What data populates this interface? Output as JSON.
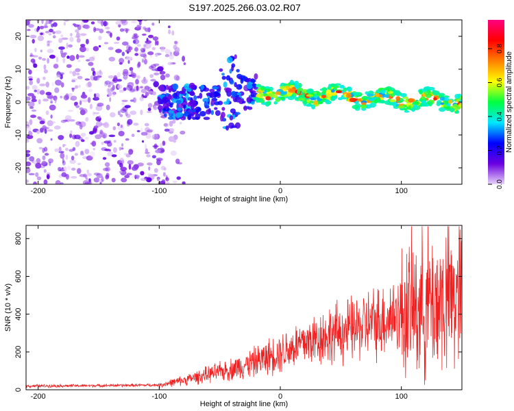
{
  "title": "S197.2025.266.03.02.R07",
  "chart_data": [
    {
      "type": "heatmap",
      "name": "spectrogram",
      "xlabel": "Height of straight line (km)",
      "ylabel": "Frequency (Hz)",
      "xlim": [
        -210,
        150
      ],
      "ylim": [
        -25,
        25
      ],
      "xticks": [
        -200,
        -100,
        0,
        100
      ],
      "yticks": [
        -20,
        -10,
        0,
        10,
        20
      ],
      "colorbar": {
        "label": "Normalized spectral amplitude",
        "range": [
          0,
          0.97
        ],
        "ticks": [
          0,
          0.2,
          0.4,
          0.6,
          0.8
        ],
        "colormap": [
          "#e8d4f8",
          "#6a00e0",
          "#0000ff",
          "#00e8ff",
          "#00ff40",
          "#ffff00",
          "#ff8000",
          "#ff0000",
          "#ff0080"
        ]
      },
      "regions": [
        {
          "desc": "noise",
          "x": [
            -210,
            -100
          ],
          "freq": [
            -25,
            25
          ],
          "amp": [
            0.0,
            0.15
          ]
        },
        {
          "desc": "onset",
          "x": [
            -100,
            -20
          ],
          "freq": [
            -5,
            5
          ],
          "amp": [
            0.1,
            0.35
          ]
        },
        {
          "desc": "tone",
          "x": [
            -20,
            150
          ],
          "freq_center": [
            3,
            0
          ],
          "amp": [
            0.4,
            0.95
          ]
        }
      ]
    },
    {
      "type": "line",
      "name": "snr",
      "xlabel": "Height of straight line (km)",
      "ylabel": "SNR (10 * v/v)",
      "xlim": [
        -210,
        150
      ],
      "ylim": [
        0,
        870
      ],
      "xticks": [
        -200,
        -100,
        0,
        100
      ],
      "yticks": [
        0,
        200,
        400,
        600,
        800
      ],
      "color": "#f02020",
      "series": [
        {
          "name": "SNR",
          "x": [
            -210,
            -150,
            -100,
            -80,
            -60,
            -40,
            -20,
            0,
            20,
            40,
            60,
            80,
            100,
            120,
            140,
            150
          ],
          "values": [
            20,
            22,
            25,
            50,
            80,
            110,
            150,
            200,
            250,
            290,
            320,
            360,
            410,
            450,
            480,
            490
          ]
        }
      ]
    }
  ]
}
